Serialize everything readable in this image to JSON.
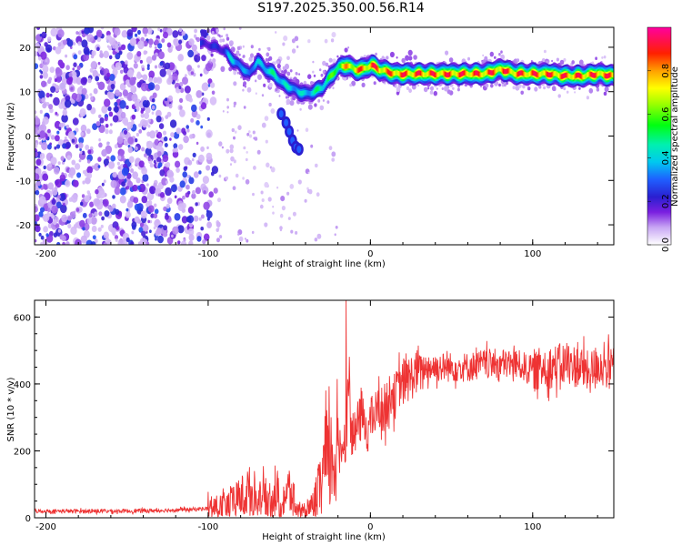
{
  "page": {
    "title": "S197.2025.350.00.56.R14"
  },
  "chart_data": [
    {
      "type": "heatmap",
      "title": "S197.2025.350.00.56.R14",
      "xlabel": "Height of straight line (km)",
      "ylabel": "Frequency (Hz)",
      "xlim": [
        -207,
        150
      ],
      "ylim": [
        -24.5,
        24.5
      ],
      "xticks": [
        "-200",
        "-100",
        "0",
        "100"
      ],
      "xtick_values": [
        -200,
        -100,
        0,
        100
      ],
      "yticks": [
        "-20",
        "-10",
        "0",
        "10",
        "20"
      ],
      "ytick_values": [
        -20,
        -10,
        0,
        10,
        20
      ],
      "colorbar": {
        "label": "Normalized spectral amplitude",
        "range": [
          0,
          1
        ],
        "ticks": [
          "0.0",
          "0.2",
          "0.4",
          "0.6",
          "0.8"
        ],
        "tick_values": [
          0.0,
          0.2,
          0.4,
          0.6,
          0.8
        ],
        "colormap": "rainbow (white-purple-blue-cyan-green-yellow-orange-red-magenta)"
      },
      "noise_region_x": [
        -207,
        -95
      ],
      "ridge": {
        "x": [
          -105,
          -95,
          -90,
          -85,
          -80,
          -75,
          -70,
          -65,
          -60,
          -55,
          -50,
          -45,
          -40,
          -35,
          -30,
          -25,
          -20,
          -15,
          -10,
          -5,
          0,
          5,
          10,
          15,
          20,
          30,
          40,
          50,
          60,
          70,
          80,
          90,
          100,
          110,
          120,
          130,
          140,
          150
        ],
        "frequency": [
          21,
          20,
          19,
          17,
          15.5,
          14,
          17,
          15,
          14,
          12,
          11,
          10,
          9.5,
          10,
          11,
          13.5,
          15.5,
          16,
          15,
          15,
          16,
          15,
          14.5,
          14,
          14,
          14,
          14,
          14,
          14,
          14,
          15,
          14,
          14,
          14,
          13.5,
          13.5,
          14,
          13.5
        ],
        "amplitude": [
          0.25,
          0.25,
          0.3,
          0.5,
          0.35,
          0.4,
          0.4,
          0.5,
          0.5,
          0.5,
          0.45,
          0.45,
          0.45,
          0.5,
          0.55,
          0.6,
          0.7,
          0.85,
          0.9,
          0.9,
          0.95,
          0.95,
          0.9,
          0.95,
          0.95,
          0.95,
          0.95,
          0.95,
          0.95,
          0.95,
          0.95,
          0.95,
          0.95,
          0.95,
          0.95,
          0.95,
          0.95,
          0.95
        ]
      },
      "branch": {
        "x": [
          -55,
          -52,
          -50,
          -48,
          -46,
          -44
        ],
        "frequency": [
          5,
          3,
          1,
          -1,
          -2.5,
          -3
        ]
      },
      "grid": false
    },
    {
      "type": "line",
      "xlabel": "Height of straight line (km)",
      "ylabel": "SNR (10 * v/v)",
      "xlim": [
        -207,
        150
      ],
      "ylim": [
        0,
        650
      ],
      "xticks": [
        "-200",
        "-100",
        "0",
        "100"
      ],
      "xtick_values": [
        -200,
        -100,
        0,
        100
      ],
      "yticks": [
        "0",
        "200",
        "400",
        "600"
      ],
      "ytick_values": [
        0,
        200,
        400,
        600
      ],
      "color": "#ee3333",
      "series": [
        {
          "x": [
            -207,
            -190,
            -170,
            -150,
            -130,
            -110,
            -100,
            -95,
            -90,
            -85,
            -80,
            -75,
            -70,
            -65,
            -60,
            -55,
            -50,
            -45,
            -40,
            -35,
            -32,
            -30,
            -28,
            -25,
            -22,
            -20,
            -18,
            -15,
            -13,
            -12,
            -10,
            -8,
            -5,
            -2,
            0,
            3,
            5,
            8,
            10,
            13,
            15,
            18,
            20,
            25,
            30,
            35,
            40,
            45,
            50,
            60,
            70,
            80,
            90,
            100,
            110,
            120,
            130,
            135,
            140,
            145,
            150
          ],
          "values": [
            20,
            20,
            20,
            20,
            22,
            25,
            28,
            30,
            35,
            45,
            60,
            80,
            50,
            60,
            70,
            55,
            80,
            20,
            10,
            40,
            80,
            120,
            150,
            170,
            180,
            190,
            215,
            240,
            470,
            230,
            250,
            280,
            300,
            260,
            290,
            310,
            330,
            320,
            330,
            380,
            360,
            400,
            400,
            420,
            440,
            450,
            450,
            450,
            450,
            450,
            460,
            460,
            460,
            440,
            450,
            460,
            450,
            430,
            460,
            450,
            450
          ]
        }
      ],
      "spike": {
        "x": -15,
        "value": 650
      },
      "grid": false
    }
  ]
}
